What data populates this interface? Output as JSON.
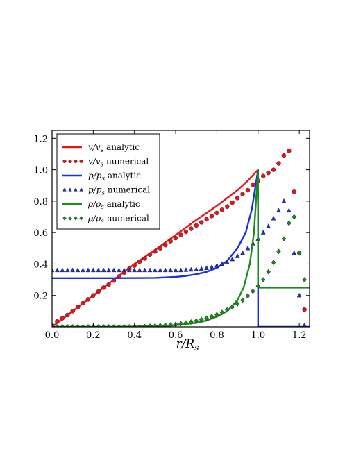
{
  "chart_data": {
    "type": "line",
    "xlabel": "r/R",
    "xlabel_sub": "s",
    "xlim": [
      0.0,
      1.25
    ],
    "ylim": [
      0.0,
      1.25
    ],
    "xticks": [
      0.0,
      0.2,
      0.4,
      0.6,
      0.8,
      1.0,
      1.2
    ],
    "xtick_labels": [
      "0.0",
      "0.2",
      "0.4",
      "0.6",
      "0.8",
      "1.0",
      "1.2"
    ],
    "yticks": [
      0.2,
      0.4,
      0.6,
      0.8,
      1.0,
      1.2
    ],
    "ytick_labels": [
      "0.2",
      "0.4",
      "0.6",
      "0.8",
      "1.0",
      "1.2"
    ],
    "grid": false,
    "legend_position": "top-left",
    "series": [
      {
        "name": "v/v_s analytic",
        "legend": {
          "math": "v/v",
          "sub": "s",
          "text": " analytic"
        },
        "kind": "line",
        "color": "#e8141a",
        "x": [
          0,
          0.1,
          0.2,
          0.3,
          0.4,
          0.5,
          0.6,
          0.7,
          0.8,
          0.9,
          0.95,
          1.0
        ],
        "y": [
          0,
          0.1,
          0.2,
          0.3,
          0.4,
          0.49,
          0.585,
          0.68,
          0.77,
          0.87,
          0.93,
          1.0
        ]
      },
      {
        "name": "v/v_s numerical",
        "legend": {
          "math": "v/v",
          "sub": "s",
          "text": " numerical"
        },
        "kind": "markers",
        "marker": "circle",
        "color": "#e8141a",
        "x": [
          0.0,
          0.025,
          0.05,
          0.075,
          0.1,
          0.125,
          0.15,
          0.175,
          0.2,
          0.225,
          0.25,
          0.275,
          0.3,
          0.325,
          0.35,
          0.375,
          0.4,
          0.425,
          0.45,
          0.475,
          0.5,
          0.525,
          0.55,
          0.575,
          0.6,
          0.625,
          0.65,
          0.675,
          0.7,
          0.725,
          0.75,
          0.775,
          0.8,
          0.825,
          0.85,
          0.875,
          0.9,
          0.925,
          0.95,
          0.975,
          1.0,
          1.025,
          1.05,
          1.075,
          1.1,
          1.125,
          1.15,
          1.175,
          1.2,
          1.225
        ],
        "y": [
          0.01,
          0.035,
          0.055,
          0.075,
          0.1,
          0.125,
          0.15,
          0.175,
          0.2,
          0.225,
          0.25,
          0.27,
          0.295,
          0.32,
          0.345,
          0.37,
          0.39,
          0.415,
          0.435,
          0.46,
          0.48,
          0.5,
          0.52,
          0.545,
          0.565,
          0.585,
          0.605,
          0.625,
          0.645,
          0.665,
          0.685,
          0.705,
          0.725,
          0.745,
          0.765,
          0.79,
          0.82,
          0.845,
          0.87,
          0.905,
          0.93,
          0.96,
          0.98,
          1.0,
          1.04,
          1.09,
          1.12,
          0.86,
          0.47,
          0.11
        ]
      },
      {
        "name": "p/p_s analytic",
        "legend": {
          "math": "p/p",
          "sub": "s",
          "text": " analytic"
        },
        "kind": "line",
        "color": "#1a2ee6",
        "x": [
          0,
          0.3,
          0.5,
          0.6,
          0.65,
          0.7,
          0.75,
          0.8,
          0.85,
          0.9,
          0.94,
          0.97,
          1.0,
          1.0,
          1.25
        ],
        "y": [
          0.31,
          0.31,
          0.312,
          0.318,
          0.324,
          0.335,
          0.35,
          0.375,
          0.42,
          0.5,
          0.6,
          0.75,
          1.0,
          0.0,
          0.0
        ]
      },
      {
        "name": "p/p_s numerical",
        "legend": {
          "math": "p/p",
          "sub": "s",
          "text": " numerical"
        },
        "kind": "markers",
        "marker": "triangle",
        "color": "#1a2ee6",
        "x": [
          0.0,
          0.025,
          0.05,
          0.075,
          0.1,
          0.125,
          0.15,
          0.175,
          0.2,
          0.225,
          0.25,
          0.275,
          0.3,
          0.325,
          0.35,
          0.375,
          0.4,
          0.425,
          0.45,
          0.475,
          0.5,
          0.525,
          0.55,
          0.575,
          0.6,
          0.625,
          0.65,
          0.675,
          0.7,
          0.725,
          0.75,
          0.775,
          0.8,
          0.825,
          0.85,
          0.875,
          0.9,
          0.925,
          0.95,
          0.975,
          1.0,
          1.025,
          1.05,
          1.075,
          1.1,
          1.125,
          1.15,
          1.175,
          1.2,
          1.225
        ],
        "y": [
          0.36,
          0.36,
          0.36,
          0.36,
          0.36,
          0.36,
          0.36,
          0.36,
          0.36,
          0.36,
          0.36,
          0.36,
          0.36,
          0.36,
          0.36,
          0.36,
          0.36,
          0.36,
          0.36,
          0.36,
          0.36,
          0.36,
          0.36,
          0.36,
          0.36,
          0.36,
          0.362,
          0.364,
          0.366,
          0.37,
          0.374,
          0.38,
          0.39,
          0.4,
          0.41,
          0.43,
          0.45,
          0.47,
          0.5,
          0.53,
          0.56,
          0.6,
          0.64,
          0.69,
          0.74,
          0.8,
          0.74,
          0.47,
          0.2,
          0.01
        ]
      },
      {
        "name": "rho/rho_s analytic",
        "legend": {
          "math": "ρ/ρ",
          "sub": "s",
          "text": " analytic"
        },
        "kind": "line",
        "color": "#1a8c1a",
        "x": [
          0,
          0.3,
          0.5,
          0.6,
          0.7,
          0.75,
          0.8,
          0.85,
          0.9,
          0.93,
          0.96,
          0.98,
          1.0,
          1.0,
          1.25
        ],
        "y": [
          0.0,
          0.0,
          0.004,
          0.01,
          0.025,
          0.04,
          0.065,
          0.1,
          0.17,
          0.25,
          0.4,
          0.6,
          1.0,
          0.25,
          0.25
        ]
      },
      {
        "name": "rho/rho_s numerical",
        "legend": {
          "math": "ρ/ρ",
          "sub": "s",
          "text": " numerical"
        },
        "kind": "markers",
        "marker": "diamond",
        "color": "#1a8c1a",
        "x": [
          0.0,
          0.025,
          0.05,
          0.075,
          0.1,
          0.125,
          0.15,
          0.175,
          0.2,
          0.225,
          0.25,
          0.275,
          0.3,
          0.325,
          0.35,
          0.375,
          0.4,
          0.425,
          0.45,
          0.475,
          0.5,
          0.525,
          0.55,
          0.575,
          0.6,
          0.625,
          0.65,
          0.675,
          0.7,
          0.725,
          0.75,
          0.775,
          0.8,
          0.825,
          0.85,
          0.875,
          0.9,
          0.925,
          0.95,
          0.975,
          1.0,
          1.025,
          1.05,
          1.075,
          1.1,
          1.125,
          1.15,
          1.175,
          1.2,
          1.225
        ],
        "y": [
          0.0,
          0.0,
          0.0,
          0.0,
          0.0,
          0.0,
          0.0,
          0.0,
          0.0,
          0.0,
          0.0,
          0.0,
          0.0,
          0.0,
          0.0,
          0.0,
          0.0,
          0.0,
          0.002,
          0.004,
          0.006,
          0.008,
          0.01,
          0.013,
          0.016,
          0.02,
          0.025,
          0.031,
          0.038,
          0.046,
          0.055,
          0.066,
          0.078,
          0.092,
          0.108,
          0.126,
          0.146,
          0.17,
          0.197,
          0.227,
          0.26,
          0.3,
          0.35,
          0.41,
          0.48,
          0.56,
          0.66,
          0.7,
          0.47,
          0.3
        ]
      }
    ]
  }
}
